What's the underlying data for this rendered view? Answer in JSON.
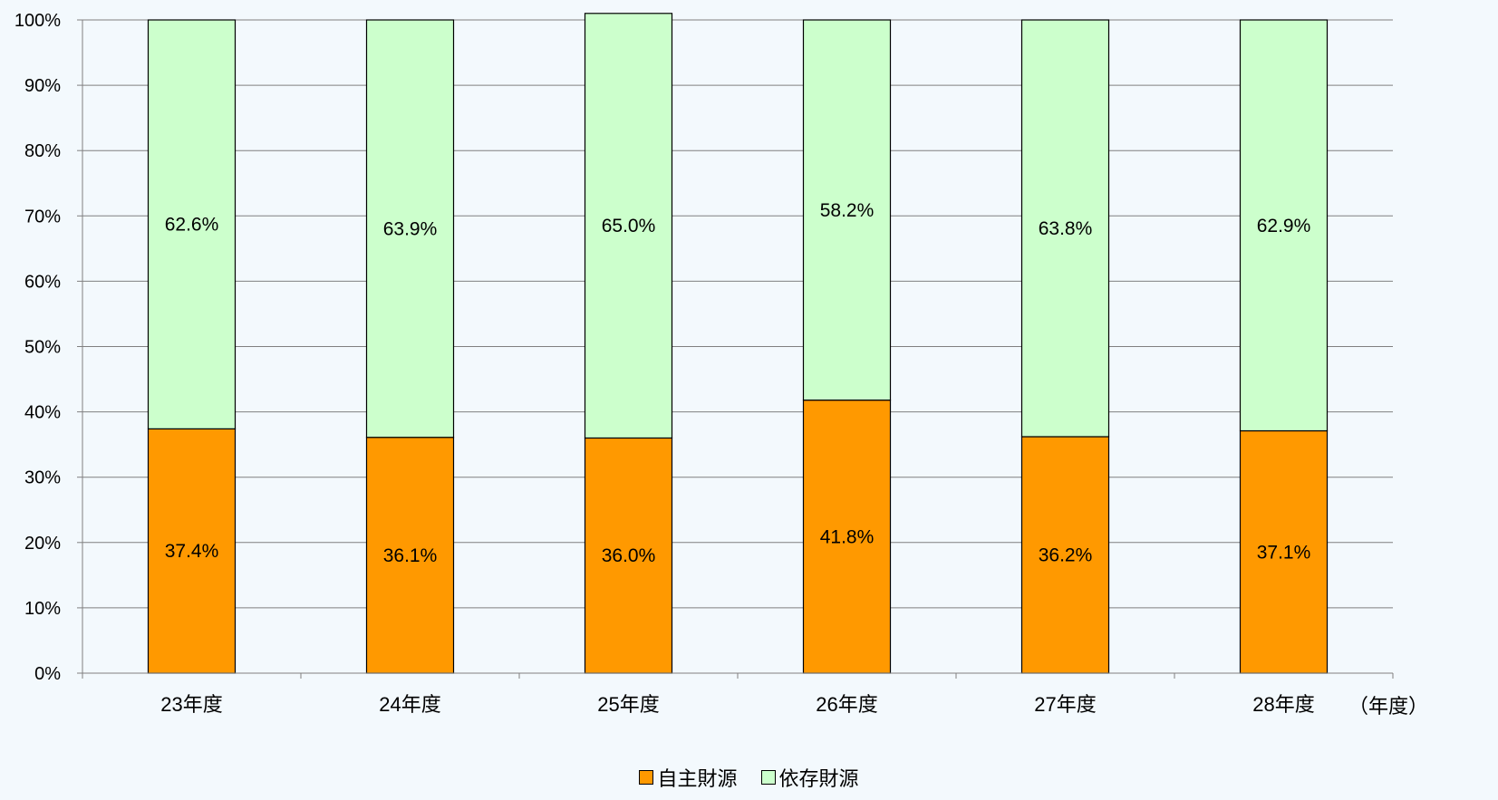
{
  "chart_data": {
    "type": "bar",
    "stacked": true,
    "categories": [
      "23年度",
      "24年度",
      "25年度",
      "26年度",
      "27年度",
      "28年度"
    ],
    "series": [
      {
        "name": "自主財源",
        "values": [
          37.4,
          36.1,
          36.0,
          41.8,
          36.2,
          37.1
        ],
        "labels": [
          "37.4%",
          "36.1%",
          "36.0%",
          "41.8%",
          "36.2%",
          "37.1%"
        ],
        "color": "#ff9900"
      },
      {
        "name": "依存財源",
        "values": [
          62.6,
          63.9,
          65.0,
          58.2,
          63.8,
          62.9
        ],
        "labels": [
          "62.6%",
          "63.9%",
          "65.0%",
          "58.2%",
          "63.8%",
          "62.9%"
        ],
        "color": "#ccffcc"
      }
    ],
    "ylim": [
      0,
      100
    ],
    "yticks": [
      "0%",
      "10%",
      "20%",
      "30%",
      "40%",
      "50%",
      "60%",
      "70%",
      "80%",
      "90%",
      "100%"
    ],
    "xlabel": "（年度）",
    "ylabel": "",
    "grid": true,
    "legend_position": "bottom"
  }
}
